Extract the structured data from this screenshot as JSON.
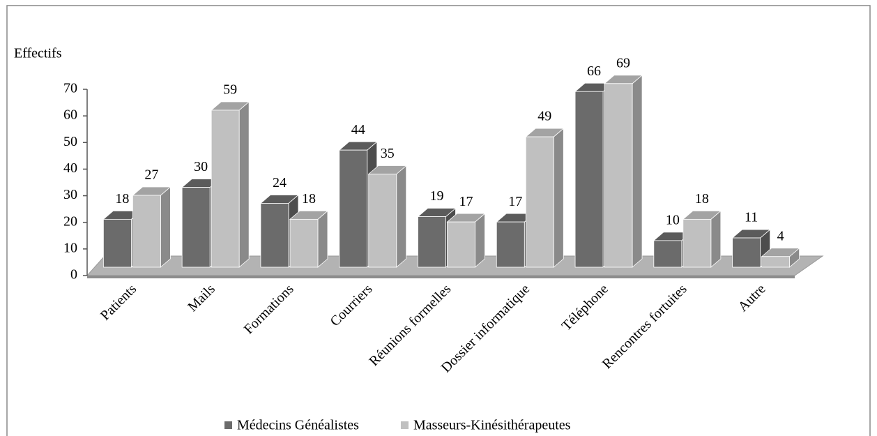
{
  "chart_data": {
    "type": "bar3d",
    "y_axis_label": "Effectifs",
    "categories": [
      "Patients",
      "Mails",
      "Formations",
      "Courriers",
      "Réunions formelles",
      "Dossier informatique",
      "Téléphone",
      "Rencontres fortuites",
      "Autre"
    ],
    "series": [
      {
        "name": "Médecins Généalistes",
        "color": "#6b6b6b",
        "values": [
          18,
          30,
          24,
          44,
          19,
          17,
          66,
          10,
          11
        ]
      },
      {
        "name": "Masseurs-Kinésithérapeutes",
        "color": "#c0c0c0",
        "values": [
          27,
          59,
          18,
          35,
          17,
          49,
          69,
          18,
          4
        ]
      }
    ],
    "ylim": [
      0,
      70
    ],
    "yticks": [
      0,
      10,
      20,
      30,
      40,
      50,
      60,
      70
    ],
    "grid": false,
    "legend": "bottom"
  }
}
